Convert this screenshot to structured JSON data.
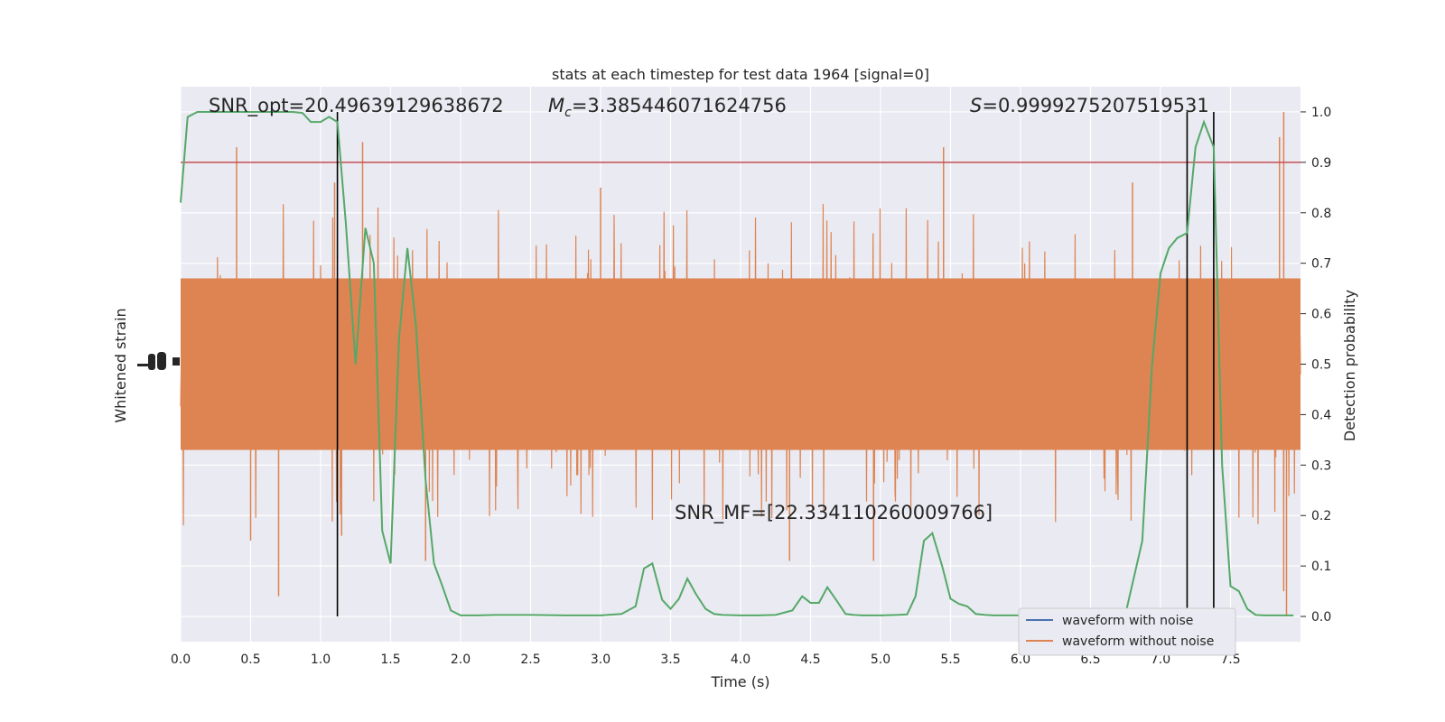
{
  "chart_data": {
    "type": "line",
    "title": "stats at each timestep for test data 1964 [signal=0]",
    "xlabel": "Time (s)",
    "ylabel_left": "Whitened strain",
    "ylabel_right": "Detection probability",
    "xlim": [
      0.0,
      8.0
    ],
    "ylim_right": [
      -0.05,
      1.05
    ],
    "x_ticks": [
      "0.0",
      "0.5",
      "1.0",
      "1.5",
      "2.0",
      "2.5",
      "3.0",
      "3.5",
      "4.0",
      "4.5",
      "5.0",
      "5.5",
      "6.0",
      "6.5",
      "7.0",
      "7.5"
    ],
    "y_ticks_right": [
      "0.0",
      "0.1",
      "0.2",
      "0.3",
      "0.4",
      "0.5",
      "0.6",
      "0.7",
      "0.8",
      "0.9",
      "1.0"
    ],
    "grid": true,
    "background": "#eaeaf2",
    "annotations": {
      "snr_opt": "SNR_opt=20.49639129638672",
      "mc_symbol": "M",
      "mc_sub": "c",
      "mc_value": "=3.385446071624756",
      "s_symbol": "S",
      "s_value": "=0.9999275207519531",
      "snr_mf": "SNR_MF=[22.334110260009766]"
    },
    "threshold": {
      "y": 0.9,
      "color": "#c44e52"
    },
    "vertical_markers_x": [
      1.12,
      7.19,
      7.38
    ],
    "legend": {
      "placement": "lower-right",
      "entries": [
        {
          "label": "waveform with noise",
          "color": "#4c72b0"
        },
        {
          "label": "waveform without noise",
          "color": "#dd8452"
        }
      ]
    },
    "series": [
      {
        "name": "waveform without noise",
        "color": "#dd8452",
        "kind": "noise-band",
        "band_center": 0.5,
        "band_core": [
          0.33,
          0.67
        ],
        "spikes_up": [
          {
            "x": 0.4,
            "y": 0.93
          },
          {
            "x": 1.3,
            "y": 0.94
          },
          {
            "x": 5.45,
            "y": 0.93
          },
          {
            "x": 7.88,
            "y": 1.0
          },
          {
            "x": 1.1,
            "y": 0.86
          },
          {
            "x": 3.0,
            "y": 0.85
          },
          {
            "x": 6.8,
            "y": 0.86
          },
          {
            "x": 7.85,
            "y": 0.95
          }
        ],
        "spikes_down": [
          {
            "x": 0.7,
            "y": 0.04
          },
          {
            "x": 7.9,
            "y": 0.0
          },
          {
            "x": 7.88,
            "y": 0.05
          },
          {
            "x": 0.5,
            "y": 0.15
          },
          {
            "x": 4.35,
            "y": 0.11
          },
          {
            "x": 4.95,
            "y": 0.11
          },
          {
            "x": 1.75,
            "y": 0.11
          },
          {
            "x": 1.15,
            "y": 0.16
          }
        ]
      },
      {
        "name": "detection probability",
        "color": "#55a868",
        "x": [
          0.0,
          0.05,
          0.12,
          0.2,
          0.3,
          0.4,
          0.5,
          0.6,
          0.7,
          0.8,
          0.87,
          0.93,
          1.0,
          1.06,
          1.12,
          1.18,
          1.25,
          1.32,
          1.38,
          1.44,
          1.5,
          1.56,
          1.62,
          1.68,
          1.75,
          1.81,
          1.87,
          1.93,
          2.0,
          2.06,
          2.12,
          2.25,
          2.5,
          2.75,
          3.0,
          3.15,
          3.25,
          3.31,
          3.37,
          3.44,
          3.5,
          3.56,
          3.62,
          3.68,
          3.75,
          3.81,
          3.87,
          4.0,
          4.12,
          4.25,
          4.37,
          4.44,
          4.5,
          4.56,
          4.62,
          4.69,
          4.75,
          4.81,
          4.87,
          5.0,
          5.12,
          5.19,
          5.25,
          5.31,
          5.37,
          5.44,
          5.5,
          5.56,
          5.62,
          5.68,
          5.75,
          5.81,
          5.87,
          6.0,
          6.25,
          6.5,
          6.75,
          6.87,
          6.94,
          7.0,
          7.06,
          7.12,
          7.19,
          7.25,
          7.31,
          7.38,
          7.44,
          7.5,
          7.56,
          7.62,
          7.68,
          7.75,
          7.87,
          7.95
        ],
        "y": [
          0.82,
          0.99,
          1.0,
          1.0,
          1.0,
          1.0,
          1.0,
          1.0,
          1.0,
          1.0,
          0.998,
          0.98,
          0.98,
          0.99,
          0.98,
          0.78,
          0.5,
          0.77,
          0.7,
          0.17,
          0.105,
          0.55,
          0.73,
          0.58,
          0.27,
          0.105,
          0.06,
          0.012,
          0.002,
          0.002,
          0.002,
          0.003,
          0.003,
          0.002,
          0.002,
          0.005,
          0.02,
          0.095,
          0.105,
          0.033,
          0.015,
          0.035,
          0.075,
          0.045,
          0.015,
          0.005,
          0.003,
          0.002,
          0.002,
          0.003,
          0.012,
          0.04,
          0.027,
          0.027,
          0.058,
          0.03,
          0.005,
          0.003,
          0.002,
          0.002,
          0.003,
          0.004,
          0.04,
          0.15,
          0.165,
          0.1,
          0.035,
          0.025,
          0.02,
          0.005,
          0.003,
          0.002,
          0.002,
          0.002,
          0.002,
          0.002,
          0.005,
          0.15,
          0.5,
          0.68,
          0.73,
          0.75,
          0.76,
          0.93,
          0.98,
          0.93,
          0.3,
          0.06,
          0.05,
          0.015,
          0.003,
          0.002,
          0.002,
          0.002
        ]
      }
    ]
  }
}
